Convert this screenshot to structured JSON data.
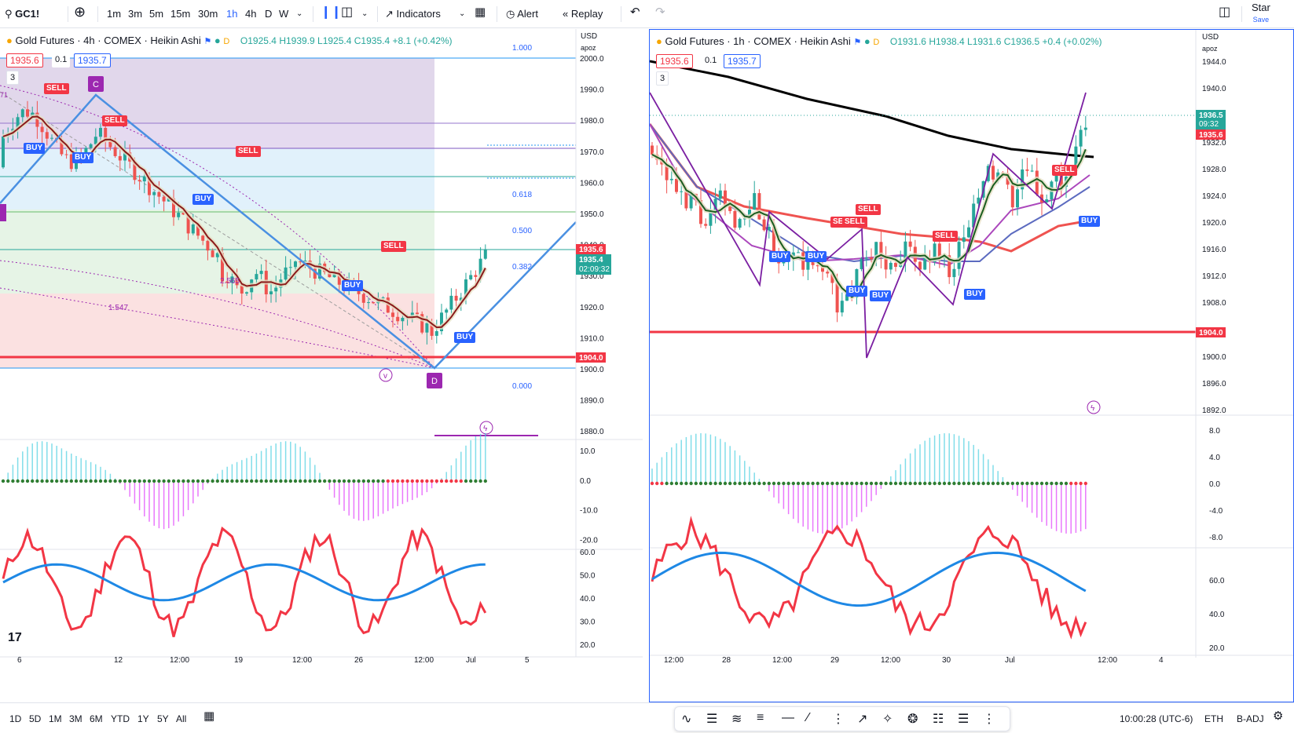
{
  "topbar": {
    "symbol": "GC1!",
    "timeframes": [
      "1m",
      "3m",
      "5m",
      "15m",
      "30m",
      "1h",
      "4h",
      "D",
      "W"
    ],
    "active_tf": "1h",
    "indicators": "Indicators",
    "alert": "Alert",
    "replay": "Replay",
    "star": "Star",
    "save": "Save"
  },
  "bottombar": {
    "ranges": [
      "1D",
      "5D",
      "1M",
      "3M",
      "6M",
      "YTD",
      "1Y",
      "5Y",
      "All"
    ],
    "clock": "10:00:28 (UTC-6)",
    "session": "ETH",
    "adj": "B-ADJ"
  },
  "left": {
    "title": "Gold Futures · 4h · COMEX · Heikin Ashi",
    "d_badge": "D",
    "ohlc": {
      "o": "O1925.4",
      "h": "H1939.9",
      "l": "L1925.4",
      "c": "C1935.4",
      "chg": "+8.1 (+0.42%)"
    },
    "bid": "1935.6",
    "spread": "0.1",
    "ask": "1935.7",
    "count": "3",
    "currency": "USD",
    "alias": "apoz",
    "price_ticks": [
      "2000.0",
      "1990.0",
      "1980.0",
      "1970.0",
      "1960.0",
      "1950.0",
      "1940.0",
      "1930.0",
      "1920.0",
      "1910.0",
      "1900.0",
      "1890.0",
      "1880.0"
    ],
    "current_price": "1935.4",
    "countdown": "02:09:32",
    "sell_price": "1935.6",
    "line_price": "1904.0",
    "fib": [
      "1.000",
      "0.618",
      "0.500",
      "0.382",
      "0.000"
    ],
    "pattern_points": [
      "C",
      "D"
    ],
    "pattern_ratios": [
      "2.565",
      "1.547",
      "71"
    ],
    "pattern_tag_v": "v",
    "osc1_ticks": [
      "10.0",
      "0.0",
      "-10.0",
      "-20.0"
    ],
    "osc2_ticks": [
      "60.0",
      "50.0",
      "40.0",
      "30.0",
      "20.0"
    ],
    "x_ticks": [
      "6",
      "12",
      "12:00",
      "19",
      "12:00",
      "26",
      "12:00",
      "Jul",
      "5"
    ],
    "tags": [
      [
        "SELL",
        "sell"
      ],
      [
        "SELL",
        "sell"
      ],
      [
        "BUY",
        "buy"
      ],
      [
        "BUY",
        "buy"
      ],
      [
        "SELL",
        "sell"
      ],
      [
        "BUY",
        "buy"
      ],
      [
        "SELL",
        "sell"
      ],
      [
        "BUY",
        "buy"
      ],
      [
        "BUY",
        "buy"
      ]
    ],
    "logo": "17"
  },
  "right": {
    "title": "Gold Futures · 1h · COMEX · Heikin Ashi",
    "d_badge": "D",
    "ohlc": {
      "o": "O1931.6",
      "h": "H1938.4",
      "l": "L1931.6",
      "c": "C1936.5",
      "chg": "+0.4 (+0.02%)"
    },
    "bid": "1935.6",
    "spread": "0.1",
    "ask": "1935.7",
    "count": "3",
    "currency": "USD",
    "alias": "apoz",
    "price_ticks": [
      "1944.0",
      "1940.0",
      "1932.0",
      "1928.0",
      "1924.0",
      "1920.0",
      "1916.0",
      "1912.0",
      "1908.0",
      "1904.0",
      "1900.0",
      "1896.0",
      "1892.0"
    ],
    "current_price": "1936.5",
    "countdown": "09:32",
    "sell_price": "1935.6",
    "line_price": "1904.0",
    "osc1_ticks": [
      "8.0",
      "4.0",
      "0.0",
      "-4.0",
      "-8.0"
    ],
    "osc2_ticks": [
      "60.0",
      "40.0",
      "20.0"
    ],
    "x_ticks": [
      "12:00",
      "28",
      "12:00",
      "29",
      "12:00",
      "30",
      "Jul",
      "12:00",
      "4"
    ],
    "tags": [
      [
        "SELL",
        "sell"
      ],
      [
        "SELL",
        "sell"
      ],
      [
        "SELL",
        "sell"
      ],
      [
        "SELL",
        "sell"
      ],
      [
        "SELL",
        "sell"
      ],
      [
        "BUY",
        "buy"
      ],
      [
        "BUY",
        "buy"
      ],
      [
        "BUY",
        "buy"
      ],
      [
        "BUY",
        "buy"
      ],
      [
        "BUY",
        "buy"
      ],
      [
        "BUY",
        "buy"
      ]
    ]
  }
}
